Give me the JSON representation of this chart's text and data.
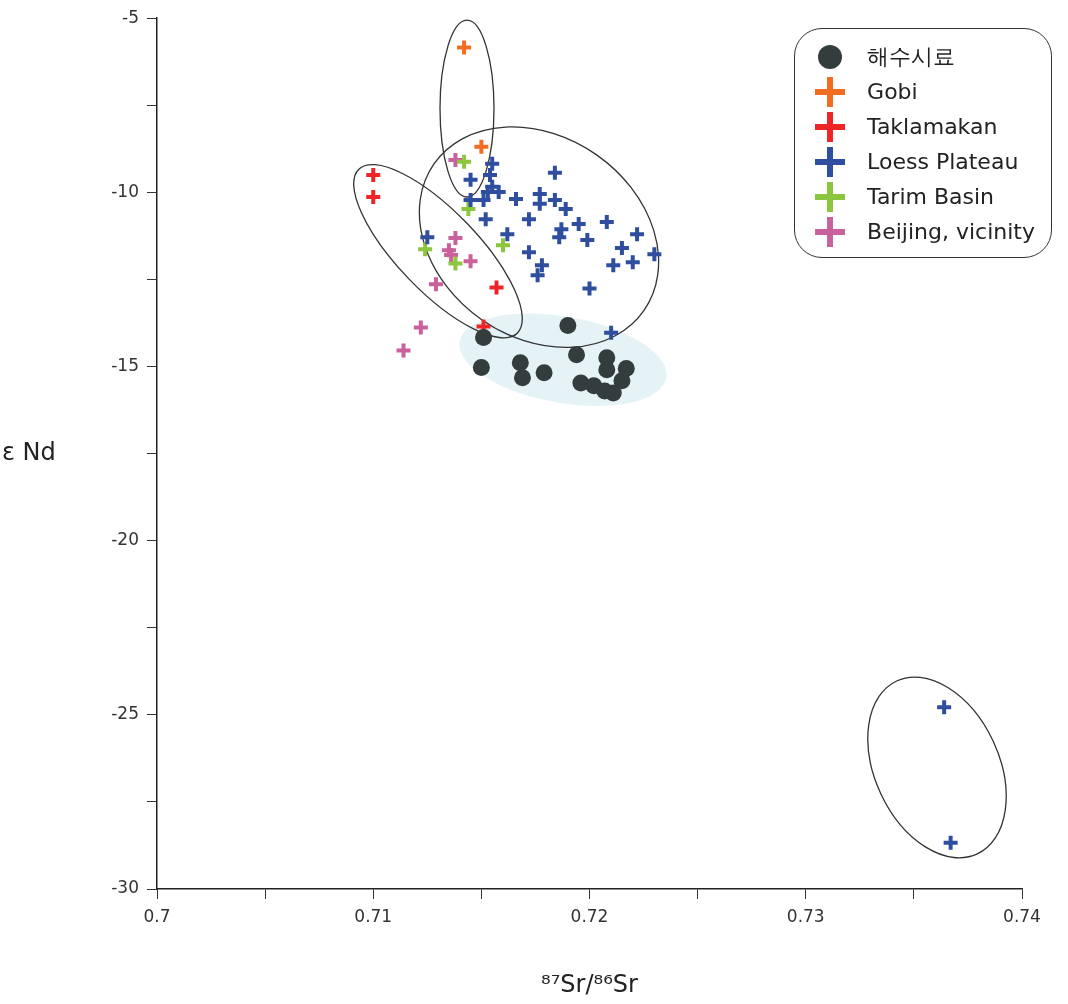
{
  "chart_data": {
    "type": "scatter",
    "xlabel": "⁸⁷Sr/⁸⁶Sr",
    "ylabel": "ε Nd",
    "legend": "top right",
    "grid": false,
    "xlim": [
      0.7,
      0.74
    ],
    "xticks": [
      0.7,
      {
        "value": 0.705,
        "label": null
      },
      0.71,
      {
        "value": 0.715,
        "label": null
      },
      0.72,
      {
        "value": 0.725,
        "label": null
      },
      0.73,
      {
        "value": 0.735,
        "label": null
      },
      0.74
    ],
    "ylim": [
      -30,
      -5
    ],
    "yticks": [
      -5,
      {
        "value": -7.5,
        "label": null
      },
      -10,
      {
        "value": -12.5,
        "label": null
      },
      -15,
      {
        "value": -17.5,
        "label": null
      },
      -20,
      {
        "value": -22.5,
        "label": null
      },
      -25,
      {
        "value": -27.5,
        "label": null
      },
      -30
    ],
    "series": [
      {
        "name": "해수시료",
        "color": "#343d3d",
        "marker": "circle",
        "x": [
          0.7151,
          0.719,
          0.715,
          0.7168,
          0.7169,
          0.7179,
          0.7194,
          0.7196,
          0.7202,
          0.7208,
          0.7208,
          0.7215,
          0.7217,
          0.7207,
          0.7211
        ],
        "values": [
          -14.17,
          -13.82,
          -15.03,
          -14.89,
          -15.32,
          -15.18,
          -14.66,
          -15.47,
          -15.55,
          -14.75,
          -15.09,
          -15.41,
          -15.06,
          -15.7,
          -15.76
        ]
      },
      {
        "name": "Gobi",
        "color": "#f26c22",
        "marker": "cross",
        "x": [
          0.7142,
          0.715
        ],
        "values": [
          -5.84,
          -8.69
        ]
      },
      {
        "name": "Taklamakan",
        "color": "#ee2427",
        "marker": "cross",
        "x": [
          0.71,
          0.71,
          0.7157,
          0.7151
        ],
        "values": [
          -9.5,
          -10.13,
          -12.73,
          -13.85
        ]
      },
      {
        "name": "Loess Plateau",
        "color": "#2f4e9f",
        "marker": "cross",
        "x": [
          0.7184,
          0.7155,
          0.7154,
          0.7145,
          0.7155,
          0.7158,
          0.7153,
          0.7166,
          0.7177,
          0.7177,
          0.7184,
          0.7189,
          0.7145,
          0.7151,
          0.7172,
          0.7195,
          0.7208,
          0.7152,
          0.7187,
          0.7125,
          0.7162,
          0.7186,
          0.7199,
          0.7222,
          0.7215,
          0.7172,
          0.723,
          0.722,
          0.7211,
          0.7178,
          0.7176,
          0.72,
          0.721,
          0.7364,
          0.7367
        ],
        "values": [
          -9.44,
          -9.18,
          -9.5,
          -9.64,
          -9.84,
          -9.99,
          -9.99,
          -10.19,
          -10.05,
          -10.33,
          -10.22,
          -10.48,
          -10.22,
          -10.22,
          -10.77,
          -10.91,
          -10.85,
          -10.77,
          -11.06,
          -11.29,
          -11.2,
          -11.29,
          -11.37,
          -11.2,
          -11.6,
          -11.72,
          -11.78,
          -12.01,
          -12.09,
          -12.09,
          -12.38,
          -12.76,
          -14.03,
          -24.78,
          -28.67
        ]
      },
      {
        "name": "Tarim Basin",
        "color": "#8cc63f",
        "marker": "cross",
        "x": [
          0.7142,
          0.7144,
          0.7124,
          0.7138,
          0.716
        ],
        "values": [
          -9.12,
          -10.48,
          -11.63,
          -12.04,
          -11.52
        ]
      },
      {
        "name": "Beijing, vicinity",
        "color": "#c9619c",
        "marker": "cross",
        "x": [
          0.7138,
          0.7138,
          0.7135,
          0.7136,
          0.7145,
          0.7129,
          0.7122,
          0.7114
        ],
        "values": [
          -9.07,
          -11.31,
          -11.66,
          -11.8,
          -11.98,
          -12.64,
          -13.88,
          -14.54
        ]
      }
    ]
  }
}
